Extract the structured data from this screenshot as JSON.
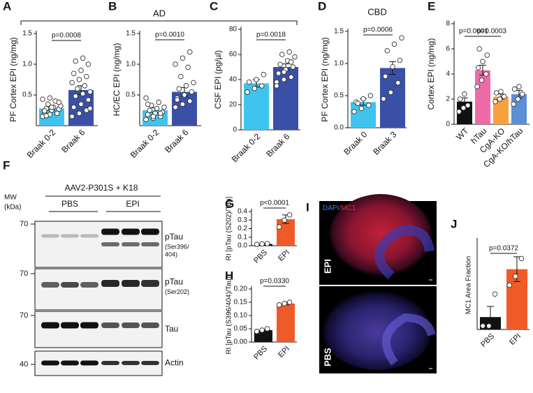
{
  "panel_letters": [
    "A",
    "B",
    "C",
    "D",
    "E",
    "F",
    "G",
    "H",
    "I",
    "J"
  ],
  "groups": [
    "AD",
    "CBD"
  ],
  "chart_data": [
    {
      "type": "bar",
      "ylabel": "PF Cortex EPI (ng/mg)",
      "categories": [
        "Braak 0-2",
        "Braak 6"
      ],
      "values": [
        0.28,
        0.58
      ],
      "errors": [
        0.03,
        0.07
      ],
      "points": [
        [
          0.15,
          0.18,
          0.2,
          0.22,
          0.25,
          0.27,
          0.28,
          0.3,
          0.32,
          0.35,
          0.4,
          0.43,
          0.45,
          0.2,
          0.24,
          0.3,
          0.38,
          0.16
        ],
        [
          0.15,
          0.2,
          0.25,
          0.3,
          0.35,
          0.42,
          0.48,
          0.52,
          0.55,
          0.6,
          0.65,
          0.7,
          0.75,
          0.8,
          0.85,
          0.9,
          1.0,
          1.05,
          1.1,
          0.28
        ]
      ],
      "colors": [
        "#3fc4ef",
        "#3a50a6"
      ],
      "ylim": [
        0,
        1.5
      ],
      "yticks": [
        0.5,
        {
          "value": 1,
          "label": "1.0"
        },
        1.5
      ],
      "annotations": [
        "p=0.0008"
      ]
    },
    {
      "type": "bar",
      "ylabel": "HC/EC EPI (ng/mg)",
      "categories": [
        "Braak 0-2",
        "Braak 6"
      ],
      "values": [
        0.25,
        0.55
      ],
      "errors": [
        0.04,
        0.07
      ],
      "points": [
        [
          0.1,
          0.12,
          0.15,
          0.18,
          0.2,
          0.22,
          0.25,
          0.28,
          0.3,
          0.33,
          0.38,
          0.45,
          0.15,
          0.2,
          0.35
        ],
        [
          0.3,
          0.35,
          0.4,
          0.45,
          0.5,
          0.55,
          0.6,
          0.65,
          0.7,
          0.8,
          0.95,
          1.0,
          1.1,
          1.2,
          0.42
        ]
      ],
      "colors": [
        "#3fc4ef",
        "#3a50a6"
      ],
      "ylim": [
        0,
        1.5
      ],
      "yticks": [
        0.5,
        {
          "value": 1,
          "label": "1.0"
        },
        1.5
      ],
      "annotations": [
        "p=0.0010"
      ]
    },
    {
      "type": "bar",
      "ylabel": "CSF EPI (pg/µl)",
      "categories": [
        "Braak 0-2",
        "Braak 6"
      ],
      "values": [
        37,
        50
      ],
      "errors": [
        3,
        2.5
      ],
      "points": [
        [
          30,
          33,
          35,
          38,
          40,
          44
        ],
        [
          38,
          40,
          42,
          45,
          48,
          50,
          52,
          55,
          58,
          60,
          62,
          35,
          46,
          54
        ]
      ],
      "colors": [
        "#3fc4ef",
        "#3a50a6"
      ],
      "ylim": [
        0,
        80
      ],
      "yticks": [
        0,
        20,
        40,
        60,
        80
      ],
      "annotations": [
        "p=0.0018"
      ]
    },
    {
      "type": "bar",
      "ylabel": "PF Cortex EPI (ng/mg)",
      "categories": [
        "Braak 0",
        "Braak 3"
      ],
      "values": [
        0.4,
        0.93
      ],
      "errors": [
        0.05,
        0.1
      ],
      "points": [
        [
          0.25,
          0.3,
          0.35,
          0.4,
          0.45,
          0.5,
          0.38
        ],
        [
          0.45,
          0.55,
          0.7,
          0.8,
          0.95,
          1.05,
          1.2,
          1.3,
          1.4
        ]
      ],
      "colors": [
        "#3fc4ef",
        "#3a50a6"
      ],
      "ylim": [
        0,
        1.5
      ],
      "yticks": [
        {
          "value": 0,
          "label": "0.0"
        },
        0.5,
        {
          "value": 1,
          "label": "1.0"
        },
        1.5
      ],
      "annotations": [
        "p=0.0006"
      ]
    },
    {
      "type": "bar",
      "ylabel": "Cortex EPI (ng/mg)",
      "categories": [
        "WT",
        "hTau",
        "CgA-KO",
        "CgA-KO/hTau"
      ],
      "values": [
        1.8,
        4.3,
        2.2,
        2.4
      ],
      "errors": [
        0.3,
        0.4,
        0.2,
        0.3
      ],
      "points": [
        [
          1.0,
          1.3,
          1.5,
          2.0,
          2.4
        ],
        [
          3.0,
          3.5,
          4.0,
          4.5,
          5.0,
          5.5,
          6.0
        ],
        [
          1.8,
          2.0,
          2.2,
          2.5,
          2.6
        ],
        [
          1.6,
          2.0,
          2.4,
          2.8,
          3.0
        ]
      ],
      "colors": [
        "#111111",
        "#f06aa8",
        "#f7a13c",
        "#5b8fd6"
      ],
      "ylim": [
        0,
        8
      ],
      "yticks": [
        0,
        2,
        4,
        6,
        8
      ],
      "annotations": [
        "p=0.0001",
        "p=0.0003"
      ]
    },
    {
      "type": "bar",
      "ylabel": "RI [pTau (S202)/Tau]",
      "categories": [
        "PBS",
        "EPI"
      ],
      "values": [
        0.02,
        0.31
      ],
      "errors": [
        0.005,
        0.05
      ],
      "points": [
        [
          0.015,
          0.02,
          0.025
        ],
        [
          0.22,
          0.3,
          0.36
        ]
      ],
      "colors": [
        "#111111",
        "#f05a28"
      ],
      "ylim": [
        0,
        0.4
      ],
      "yticks": [
        {
          "value": 0,
          "label": "0.0"
        },
        0.1,
        0.2,
        0.3,
        0.4
      ],
      "annotations": [
        "p<0.0001"
      ]
    },
    {
      "type": "bar",
      "ylabel": "RI [pTau (S396/404)/Tau]",
      "categories": [
        "PBS",
        "EPI"
      ],
      "values": [
        0.045,
        0.145
      ],
      "errors": [
        0.004,
        0.005
      ],
      "points": [
        [
          0.04,
          0.045,
          0.05
        ],
        [
          0.14,
          0.145,
          0.15
        ]
      ],
      "colors": [
        "#111111",
        "#f05a28"
      ],
      "ylim": [
        0,
        0.2
      ],
      "yticks": [
        {
          "value": 0,
          "label": "0.00"
        },
        0.05,
        {
          "value": 0.1,
          "label": "0.10"
        },
        0.15,
        {
          "value": 0.2,
          "label": "0.20"
        }
      ],
      "annotations": [
        "p=0.0330"
      ]
    },
    {
      "type": "bar",
      "ylabel": "MC1 Area Fraction",
      "categories": [
        "PBS",
        "EPI"
      ],
      "values": [
        0.7,
        3.4
      ],
      "errors": [
        0.6,
        0.7
      ],
      "points": [
        [
          0.2,
          0.2,
          2.0
        ],
        [
          2.5,
          3.0,
          4.0
        ]
      ],
      "colors": [
        "#111111",
        "#f05a28"
      ],
      "ylim": [
        0,
        5
      ],
      "annotations": [
        "p=0.0372"
      ]
    }
  ],
  "blot": {
    "mw": "MW",
    "mw_unit": "(kDa)",
    "construct": "AAV2-P301S + K18",
    "groups": [
      "PBS",
      "EPI"
    ],
    "markers": [
      "70",
      "70",
      "70",
      "40"
    ],
    "rows": [
      {
        "label": "pTau",
        "sub": [
          "(Ser396/",
          "404)"
        ]
      },
      {
        "label": "pTau",
        "sub": [
          "(Ser202)"
        ]
      },
      {
        "label": "Tau"
      },
      {
        "label": "Actin"
      }
    ]
  },
  "image": {
    "stain": [
      "DAPI",
      "/MC1"
    ],
    "labels": [
      "EPI",
      "PBS"
    ]
  }
}
